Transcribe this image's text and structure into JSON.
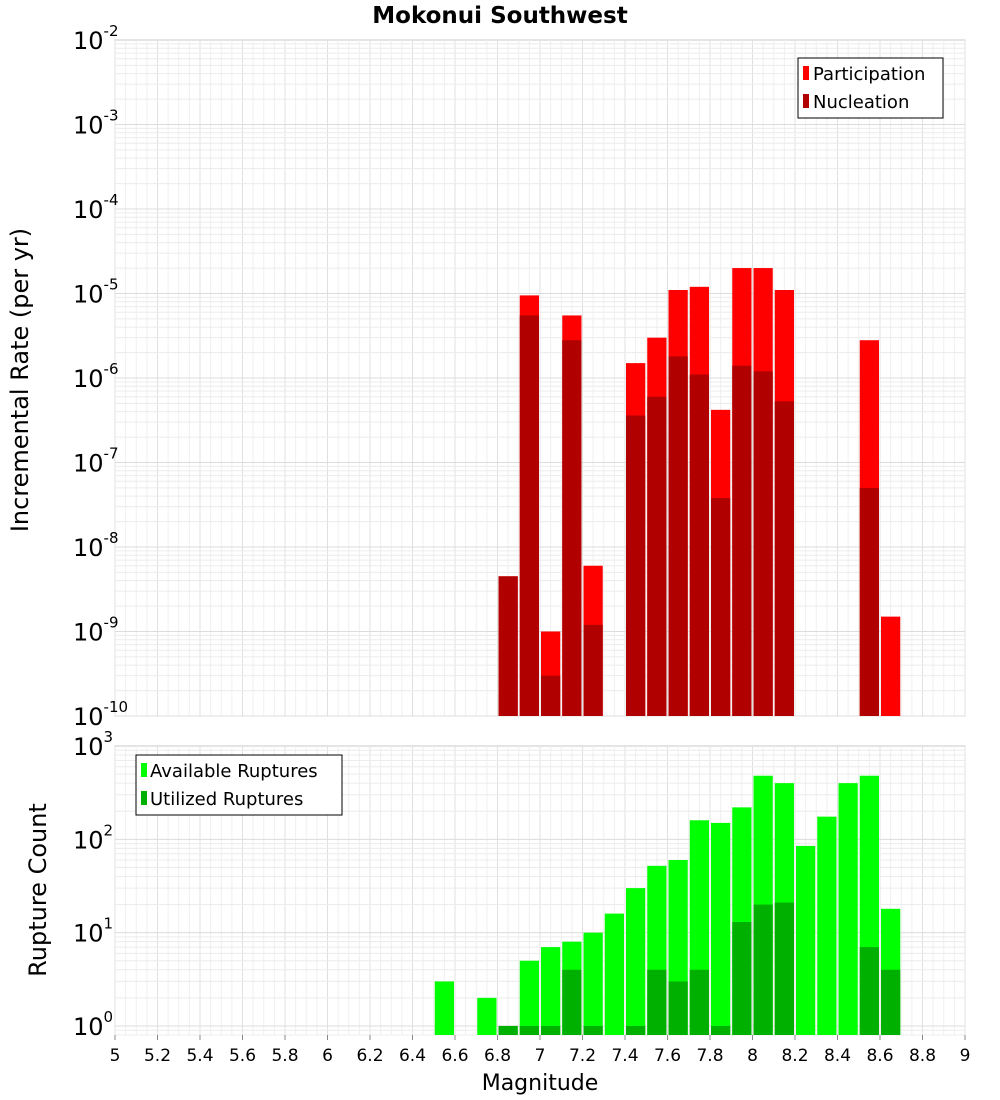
{
  "page": {
    "title": "Mokonui Southwest"
  },
  "x_axis": {
    "label": "Magnitude",
    "range": [
      5,
      9
    ],
    "ticks": [
      "5",
      "5.2",
      "5.4",
      "5.6",
      "5.8",
      "6",
      "6.2",
      "6.4",
      "6.6",
      "6.8",
      "7",
      "7.2",
      "7.4",
      "7.6",
      "7.8",
      "8",
      "8.2",
      "8.4",
      "8.6",
      "8.8",
      "9"
    ],
    "bin_width": 0.1
  },
  "chart_data": [
    {
      "type": "bar",
      "title": "Mokonui Southwest",
      "ylabel": "Incremental Rate (per yr)",
      "yscale": "log",
      "ylim": [
        1e-10,
        0.01
      ],
      "y_ticks": [
        {
          "base": "10",
          "exp": "-10"
        },
        {
          "base": "10",
          "exp": "-9"
        },
        {
          "base": "10",
          "exp": "-8"
        },
        {
          "base": "10",
          "exp": "-7"
        },
        {
          "base": "10",
          "exp": "-6"
        },
        {
          "base": "10",
          "exp": "-5"
        },
        {
          "base": "10",
          "exp": "-4"
        },
        {
          "base": "10",
          "exp": "-3"
        },
        {
          "base": "10",
          "exp": "-2"
        }
      ],
      "grid": true,
      "legend_position": "top-right",
      "series": [
        {
          "name": "Participation",
          "color": "#ff0000",
          "x": [
            6.85,
            6.95,
            7.05,
            7.15,
            7.25,
            7.45,
            7.55,
            7.65,
            7.75,
            7.85,
            7.95,
            8.05,
            8.15,
            8.55,
            8.65
          ],
          "values": [
            4.5e-09,
            9.5e-06,
            1e-09,
            5.5e-06,
            6e-09,
            1.5e-06,
            3e-06,
            1.1e-05,
            1.2e-05,
            4.2e-07,
            2e-05,
            2e-05,
            1.1e-05,
            2.8e-06,
            1.5e-09
          ]
        },
        {
          "name": "Nucleation",
          "color": "#b00000",
          "x": [
            6.85,
            6.95,
            7.05,
            7.15,
            7.25,
            7.45,
            7.55,
            7.65,
            7.75,
            7.85,
            7.95,
            8.05,
            8.15,
            8.55
          ],
          "values": [
            4.5e-09,
            5.5e-06,
            3e-10,
            2.8e-06,
            1.2e-09,
            3.6e-07,
            6e-07,
            1.8e-06,
            1.1e-06,
            3.8e-08,
            1.4e-06,
            1.2e-06,
            5.3e-07,
            5e-08
          ]
        }
      ]
    },
    {
      "type": "bar",
      "xlabel": "Magnitude",
      "ylabel": "Rupture Count",
      "yscale": "log",
      "ylim": [
        0.8,
        1000
      ],
      "y_ticks": [
        {
          "base": "10",
          "exp": "0"
        },
        {
          "base": "10",
          "exp": "1"
        },
        {
          "base": "10",
          "exp": "2"
        },
        {
          "base": "10",
          "exp": "3"
        }
      ],
      "grid": true,
      "legend_position": "top-left",
      "series": [
        {
          "name": "Available Ruptures",
          "color": "#00ff00",
          "x": [
            6.55,
            6.75,
            6.85,
            6.95,
            7.05,
            7.15,
            7.25,
            7.35,
            7.45,
            7.55,
            7.65,
            7.75,
            7.85,
            7.95,
            8.05,
            8.15,
            8.25,
            8.35,
            8.45,
            8.55,
            8.65
          ],
          "values": [
            3,
            2,
            1,
            5,
            7,
            8,
            10,
            16,
            30,
            52,
            60,
            160,
            150,
            220,
            480,
            400,
            85,
            175,
            400,
            480,
            18
          ]
        },
        {
          "name": "Utilized Ruptures",
          "color": "#00b000",
          "x": [
            6.85,
            6.95,
            7.05,
            7.15,
            7.25,
            7.45,
            7.55,
            7.65,
            7.75,
            7.85,
            7.95,
            8.05,
            8.15,
            8.55,
            8.65
          ],
          "values": [
            1,
            1,
            1,
            4,
            1,
            1,
            4,
            3,
            4,
            1,
            13,
            20,
            21,
            7,
            4
          ]
        }
      ]
    }
  ]
}
